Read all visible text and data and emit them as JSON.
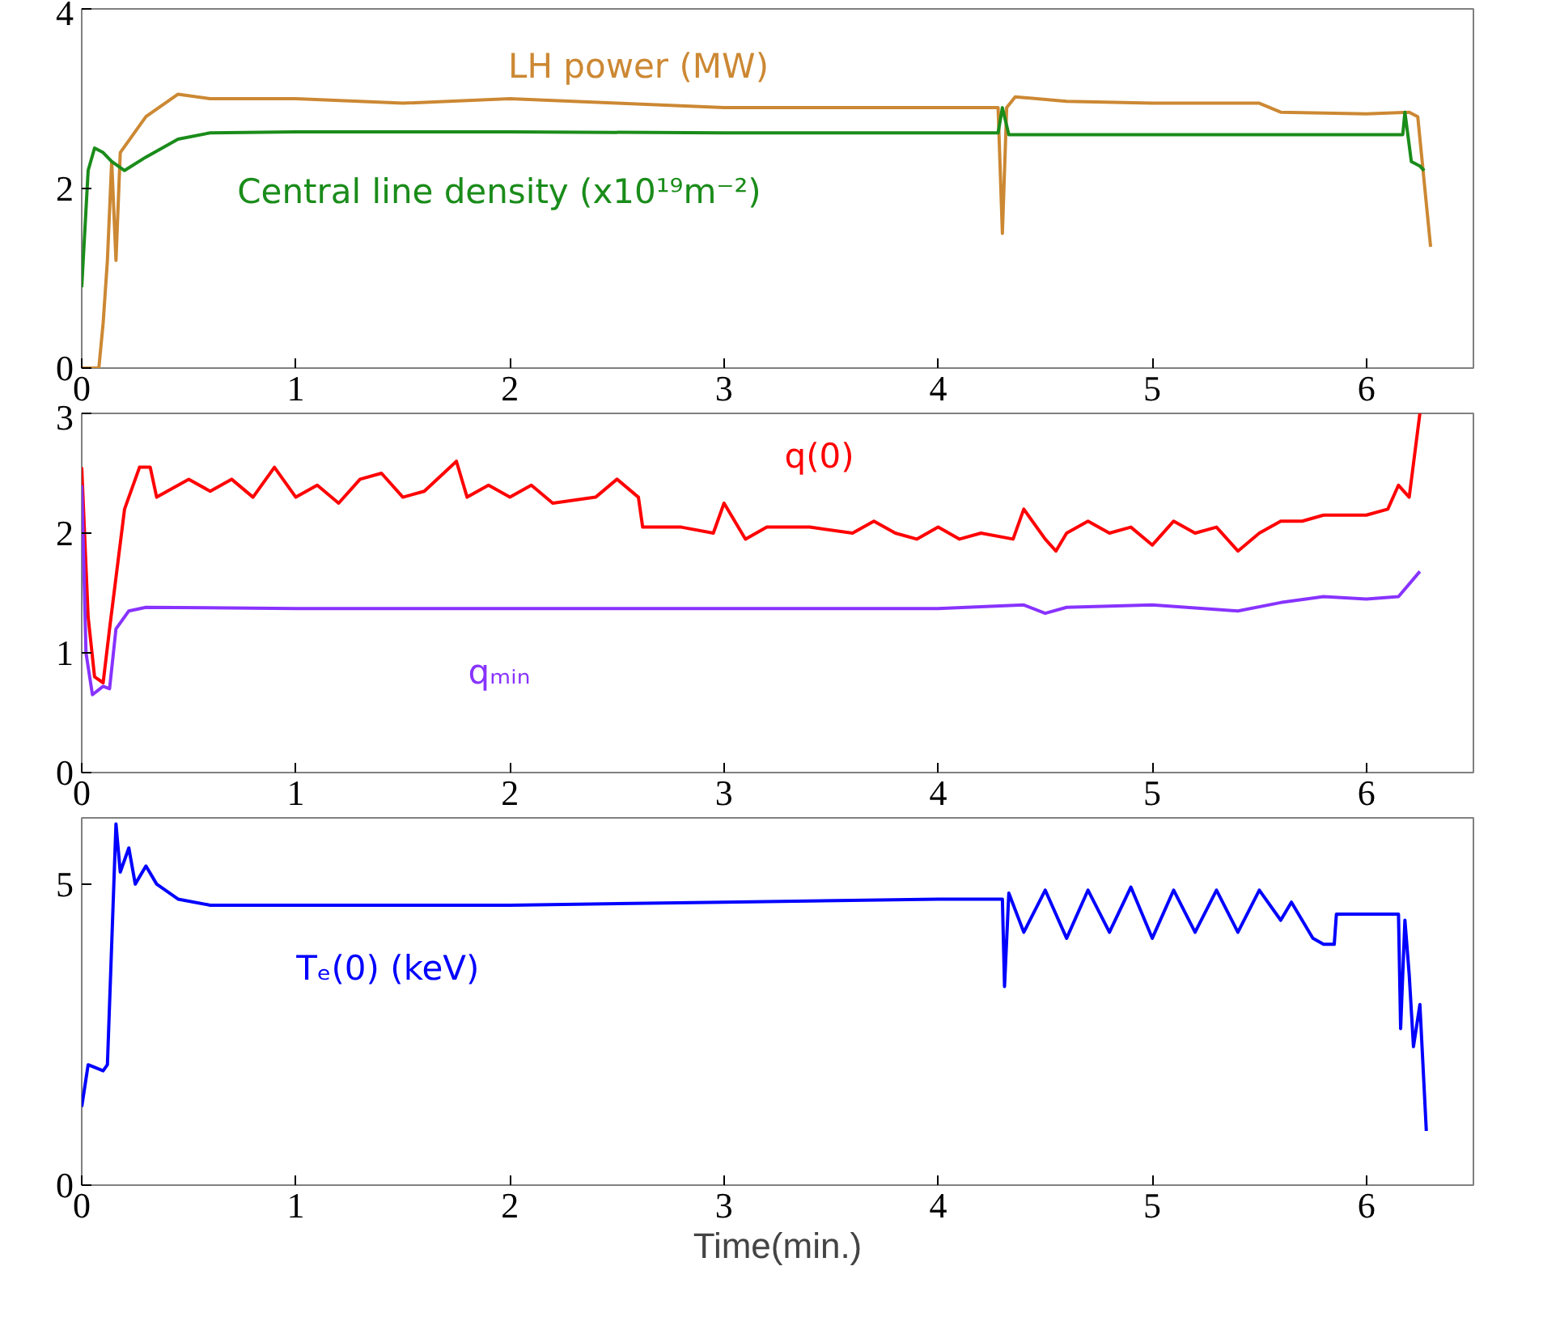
{
  "chart_data": [
    {
      "type": "line",
      "xlim": [
        0,
        6.5
      ],
      "xticks": [
        0,
        1,
        2,
        3,
        4,
        5,
        6
      ],
      "ylim": [
        0,
        4
      ],
      "yticks": [
        0,
        2,
        4
      ],
      "series": [
        {
          "name": "LH power (MW)",
          "color": "#cc8833",
          "x": [
            0,
            0.08,
            0.1,
            0.12,
            0.14,
            0.16,
            0.18,
            0.3,
            0.45,
            0.6,
            1.0,
            1.5,
            2.0,
            2.5,
            3.0,
            3.5,
            4.0,
            4.28,
            4.3,
            4.32,
            4.36,
            4.6,
            5.0,
            5.5,
            5.6,
            6.0,
            6.2,
            6.24,
            6.3
          ],
          "values": [
            0,
            0,
            0.5,
            1.2,
            2.3,
            1.2,
            2.4,
            2.8,
            3.05,
            3.0,
            3.0,
            2.95,
            3.0,
            2.95,
            2.9,
            2.9,
            2.9,
            2.9,
            1.5,
            2.9,
            3.02,
            2.97,
            2.95,
            2.95,
            2.85,
            2.83,
            2.85,
            2.8,
            1.35
          ]
        },
        {
          "name": "Central line density (x10¹⁹m⁻²)",
          "color": "#1a8c1a",
          "x": [
            0,
            0.03,
            0.06,
            0.1,
            0.14,
            0.2,
            0.3,
            0.45,
            0.6,
            1,
            2,
            3,
            4,
            4.28,
            4.3,
            4.33,
            5,
            6,
            6.17,
            6.18,
            6.21,
            6.25,
            6.27
          ],
          "values": [
            0.9,
            2.2,
            2.45,
            2.4,
            2.3,
            2.2,
            2.35,
            2.55,
            2.62,
            2.63,
            2.63,
            2.62,
            2.62,
            2.62,
            2.9,
            2.6,
            2.6,
            2.6,
            2.6,
            2.85,
            2.3,
            2.25,
            2.2
          ]
        }
      ]
    },
    {
      "type": "line",
      "xlim": [
        0,
        6.5
      ],
      "xticks": [
        0,
        1,
        2,
        3,
        4,
        5,
        6
      ],
      "ylim": [
        0,
        3
      ],
      "yticks": [
        0,
        1,
        2,
        3
      ],
      "series": [
        {
          "name": "q(0)",
          "color": "#ff0000",
          "x": [
            0,
            0.03,
            0.06,
            0.1,
            0.13,
            0.2,
            0.27,
            0.32,
            0.35,
            0.5,
            0.6,
            0.7,
            0.8,
            0.9,
            1.0,
            1.1,
            1.2,
            1.3,
            1.4,
            1.5,
            1.6,
            1.75,
            1.8,
            1.9,
            2.0,
            2.1,
            2.2,
            2.4,
            2.5,
            2.6,
            2.62,
            2.8,
            2.95,
            3.0,
            3.1,
            3.2,
            3.4,
            3.6,
            3.7,
            3.8,
            3.9,
            4.0,
            4.1,
            4.2,
            4.35,
            4.4,
            4.5,
            4.55,
            4.6,
            4.7,
            4.8,
            4.9,
            5.0,
            5.1,
            5.2,
            5.3,
            5.4,
            5.5,
            5.6,
            5.7,
            5.8,
            5.9,
            6.0,
            6.1,
            6.15,
            6.2,
            6.25
          ],
          "values": [
            2.55,
            1.3,
            0.8,
            0.75,
            1.2,
            2.2,
            2.55,
            2.55,
            2.3,
            2.45,
            2.35,
            2.45,
            2.3,
            2.55,
            2.3,
            2.4,
            2.25,
            2.45,
            2.5,
            2.3,
            2.35,
            2.6,
            2.3,
            2.4,
            2.3,
            2.4,
            2.25,
            2.3,
            2.45,
            2.3,
            2.05,
            2.05,
            2.0,
            2.25,
            1.95,
            2.05,
            2.05,
            2.0,
            2.1,
            2.0,
            1.95,
            2.05,
            1.95,
            2.0,
            1.95,
            2.2,
            1.95,
            1.85,
            2.0,
            2.1,
            2.0,
            2.05,
            1.9,
            2.1,
            2.0,
            2.05,
            1.85,
            2.0,
            2.1,
            2.1,
            2.15,
            2.15,
            2.15,
            2.2,
            2.4,
            2.3,
            3.0
          ]
        },
        {
          "name": "qₘᵢₙ",
          "color": "#8833ff",
          "x": [
            0,
            0.02,
            0.05,
            0.1,
            0.13,
            0.16,
            0.22,
            0.3,
            1,
            2,
            3,
            4,
            4.4,
            4.5,
            4.6,
            5,
            5.4,
            5.6,
            5.8,
            6.0,
            6.15,
            6.25
          ],
          "values": [
            2.4,
            1.0,
            0.65,
            0.72,
            0.7,
            1.2,
            1.35,
            1.38,
            1.37,
            1.37,
            1.37,
            1.37,
            1.4,
            1.33,
            1.38,
            1.4,
            1.35,
            1.42,
            1.47,
            1.45,
            1.47,
            1.68
          ]
        }
      ]
    },
    {
      "type": "line",
      "xlim": [
        0,
        6.5
      ],
      "xticks": [
        0,
        1,
        2,
        3,
        4,
        5,
        6
      ],
      "ylim": [
        0,
        6.1
      ],
      "yticks": [
        0,
        5
      ],
      "xlabel": "Time(min.)",
      "series": [
        {
          "name": "Tₑ(0) (keV)",
          "color": "#0000ff",
          "x": [
            0,
            0.03,
            0.1,
            0.12,
            0.15,
            0.16,
            0.18,
            0.22,
            0.25,
            0.3,
            0.35,
            0.45,
            0.6,
            1,
            2,
            3,
            4,
            4.3,
            4.31,
            4.33,
            4.4,
            4.5,
            4.6,
            4.7,
            4.8,
            4.9,
            5.0,
            5.1,
            5.2,
            5.3,
            5.4,
            5.5,
            5.6,
            5.65,
            5.7,
            5.75,
            5.8,
            5.85,
            5.86,
            6.15,
            6.16,
            6.18,
            6.2,
            6.22,
            6.25,
            6.28
          ],
          "values": [
            1.3,
            2.0,
            1.9,
            2.0,
            5.0,
            6.0,
            5.2,
            5.6,
            5.0,
            5.3,
            5.0,
            4.75,
            4.65,
            4.65,
            4.65,
            4.7,
            4.75,
            4.75,
            3.3,
            4.85,
            4.2,
            4.9,
            4.1,
            4.9,
            4.2,
            4.95,
            4.1,
            4.9,
            4.2,
            4.9,
            4.2,
            4.9,
            4.4,
            4.7,
            4.4,
            4.1,
            4.0,
            4.0,
            4.5,
            4.5,
            2.6,
            4.4,
            3.5,
            2.3,
            3.0,
            0.9
          ]
        }
      ]
    }
  ]
}
